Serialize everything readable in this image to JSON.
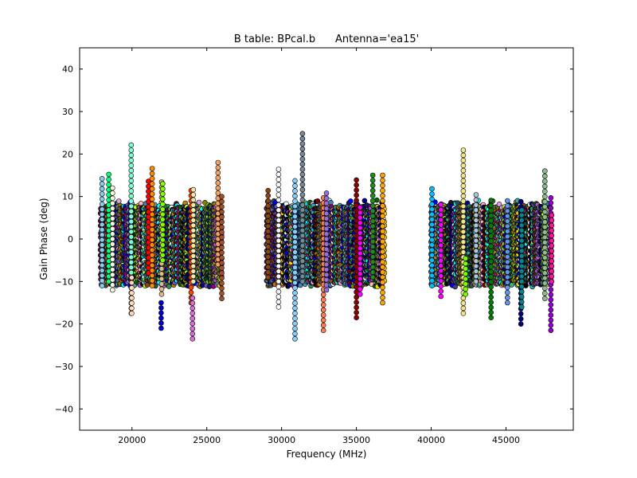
{
  "chart_data": {
    "type": "scatter",
    "title": "B table: BPcal.b      Antenna='ea15'",
    "xlabel": "Frequency (MHz)",
    "ylabel": "Gain Phase (deg)",
    "xlim": [
      16500,
      49500
    ],
    "ylim": [
      -45,
      45
    ],
    "xticks": [
      20000,
      25000,
      30000,
      35000,
      40000,
      45000
    ],
    "yticks": [
      -40,
      -30,
      -20,
      -10,
      0,
      10,
      20,
      30,
      40
    ],
    "grid": false,
    "bands_mhz": [
      [
        17900,
        26000
      ],
      [
        29000,
        36900
      ],
      [
        40000,
        48000
      ]
    ],
    "typical_phase_range_deg": [
      -9,
      9
    ],
    "notable_columns": [
      {
        "freq": 18000,
        "min": -11,
        "max": 15,
        "color": "#87CEEB"
      },
      {
        "freq": 18450,
        "min": -10,
        "max": 16,
        "color": "#00FF7F"
      },
      {
        "freq": 18700,
        "min": -12,
        "max": 12,
        "color": "#F5F5DC"
      },
      {
        "freq": 19950,
        "min": -17.5,
        "max": 22.5,
        "color": "#7FFFD4"
      },
      {
        "freq": 19980,
        "min": -17.5,
        "max": -9,
        "color": "#FFDAB9"
      },
      {
        "freq": 21100,
        "min": -8,
        "max": 14,
        "color": "#FF0000"
      },
      {
        "freq": 21350,
        "min": -11,
        "max": 17,
        "color": "#FF8C00"
      },
      {
        "freq": 21950,
        "min": -21,
        "max": -15,
        "color": "#0000CD"
      },
      {
        "freq": 21980,
        "min": -13,
        "max": 13.5,
        "color": "#DEB887"
      },
      {
        "freq": 22050,
        "min": -5,
        "max": 13,
        "color": "#7FFF00"
      },
      {
        "freq": 23950,
        "min": -15,
        "max": 12,
        "color": "#FF4500"
      },
      {
        "freq": 24050,
        "min": -23.5,
        "max": -13,
        "color": "#DA70D6"
      },
      {
        "freq": 24100,
        "min": -10,
        "max": 12.5,
        "color": "#EEE8AA"
      },
      {
        "freq": 25750,
        "min": -6,
        "max": 19,
        "color": "#F4A460"
      },
      {
        "freq": 26000,
        "min": -14,
        "max": 10,
        "color": "#A0522D"
      },
      {
        "freq": 29100,
        "min": -9,
        "max": 12,
        "color": "#8B4513"
      },
      {
        "freq": 29800,
        "min": -16,
        "max": 17.5,
        "color": "#F8F8FF"
      },
      {
        "freq": 30900,
        "min": -23.5,
        "max": 14,
        "color": "#87CEFA"
      },
      {
        "freq": 31400,
        "min": -10,
        "max": 25,
        "color": "#778899"
      },
      {
        "freq": 32800,
        "min": -21.5,
        "max": 10,
        "color": "#FF7F50"
      },
      {
        "freq": 33000,
        "min": -12,
        "max": 11,
        "color": "#9370DB"
      },
      {
        "freq": 35000,
        "min": -18.5,
        "max": 15,
        "color": "#8B0000"
      },
      {
        "freq": 35250,
        "min": -13,
        "max": 8,
        "color": "#FF00FF"
      },
      {
        "freq": 36100,
        "min": -9,
        "max": 16,
        "color": "#228B22"
      },
      {
        "freq": 36750,
        "min": -15,
        "max": 16,
        "color": "#FFA500"
      },
      {
        "freq": 40050,
        "min": -11,
        "max": 12.5,
        "color": "#00BFFF"
      },
      {
        "freq": 40650,
        "min": -13.5,
        "max": 9,
        "color": "#FF00FF"
      },
      {
        "freq": 42150,
        "min": -17.5,
        "max": 22,
        "color": "#F0E68C"
      },
      {
        "freq": 42300,
        "min": -13,
        "max": -4,
        "color": "#7CFC00"
      },
      {
        "freq": 43000,
        "min": -10,
        "max": 11,
        "color": "#B0C4DE"
      },
      {
        "freq": 44000,
        "min": -18.5,
        "max": 9.5,
        "color": "#008000"
      },
      {
        "freq": 45100,
        "min": -15,
        "max": 10,
        "color": "#6495ED"
      },
      {
        "freq": 46000,
        "min": -20,
        "max": 9,
        "color": "#000080"
      },
      {
        "freq": 46050,
        "min": -16,
        "max": 7,
        "color": "#008B8B"
      },
      {
        "freq": 47600,
        "min": -14,
        "max": 16.5,
        "color": "#8FBC8F"
      },
      {
        "freq": 48000,
        "min": -21.5,
        "max": 10,
        "color": "#9400D3"
      },
      {
        "freq": 48050,
        "min": -10,
        "max": 6,
        "color": "#FF1493"
      }
    ]
  }
}
